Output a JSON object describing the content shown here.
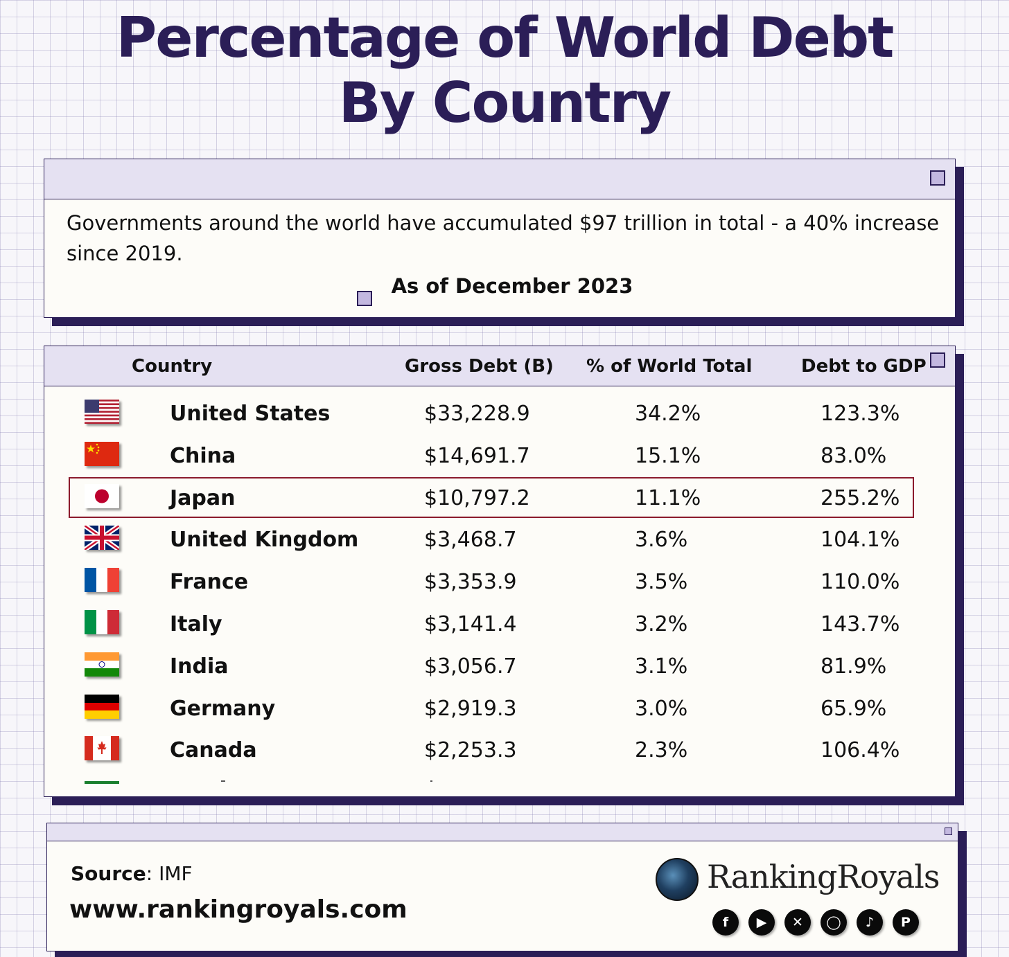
{
  "title": {
    "line1": "Percentage of  World Debt",
    "line2": "By Country"
  },
  "intro": {
    "text": "Governments around the world have accumulated $97 trillion in total - a 40% increase since 2019.",
    "as_of": "As of December 2023"
  },
  "chart_data": {
    "type": "table",
    "columns": [
      "Country",
      "Gross Debt (B)",
      "% of World Total",
      "Debt to GDP"
    ],
    "rows": [
      {
        "country": "United States",
        "flag": "us-flag-icon",
        "gross_debt": "$33,228.9",
        "pct_world": "34.2%",
        "debt_gdp": "123.3%"
      },
      {
        "country": "China",
        "flag": "china-flag-icon",
        "gross_debt": "$14,691.7",
        "pct_world": "15.1%",
        "debt_gdp": "83.0%"
      },
      {
        "country": "Japan",
        "flag": "japan-flag-icon",
        "gross_debt": "$10,797.2",
        "pct_world": "11.1%",
        "debt_gdp": "255.2%",
        "highlighted": true
      },
      {
        "country": "United Kingdom",
        "flag": "uk-flag-icon",
        "gross_debt": "$3,468.7",
        "pct_world": "3.6%",
        "debt_gdp": "104.1%"
      },
      {
        "country": "France",
        "flag": "france-flag-icon",
        "gross_debt": "$3,353.9",
        "pct_world": "3.5%",
        "debt_gdp": "110.0%"
      },
      {
        "country": "Italy",
        "flag": "italy-flag-icon",
        "gross_debt": "$3,141.4",
        "pct_world": "3.2%",
        "debt_gdp": "143.7%"
      },
      {
        "country": "India",
        "flag": "india-flag-icon",
        "gross_debt": "$3,056.7",
        "pct_world": "3.1%",
        "debt_gdp": "81.9%"
      },
      {
        "country": "Germany",
        "flag": "germany-flag-icon",
        "gross_debt": "$2,919.3",
        "pct_world": "3.0%",
        "debt_gdp": "65.9%"
      },
      {
        "country": "Canada",
        "flag": "canada-flag-icon",
        "gross_debt": "$2,253.3",
        "pct_world": "2.3%",
        "debt_gdp": "106.4%"
      }
    ]
  },
  "footer": {
    "source_label": "Source",
    "source_value": ": IMF",
    "url": "www.rankingroyals.com",
    "brand": "RankingRoyals",
    "social": [
      "facebook-icon",
      "youtube-icon",
      "x-icon",
      "instagram-icon",
      "tiktok-icon",
      "pinterest-icon"
    ]
  },
  "colors": {
    "accent": "#2b1e57",
    "highlight_border": "#8b1a2c",
    "bar_fill": "#e5e1f2"
  }
}
